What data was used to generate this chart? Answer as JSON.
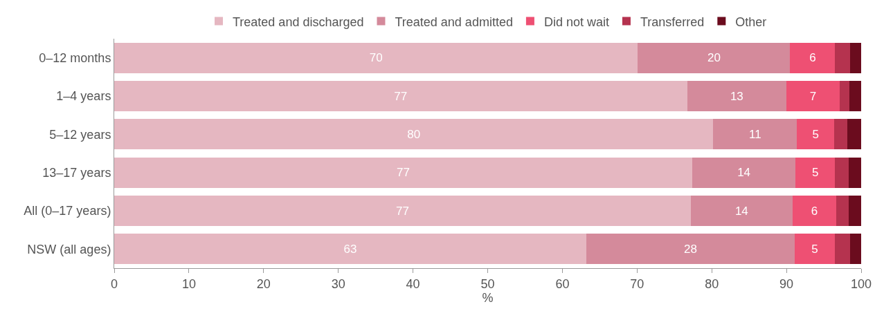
{
  "chart_data": {
    "type": "bar",
    "orientation": "horizontal",
    "stacked": true,
    "xlabel": "%",
    "categories": [
      "0–12 months",
      "1–4 years",
      "5–12 years",
      "13–17 years",
      "All (0–17 years)",
      "NSW (all ages)"
    ],
    "series": [
      {
        "name": "Treated and discharged",
        "color": "#e5b7c1",
        "values": [
          70.1,
          76.7,
          80.2,
          77.4,
          77.2,
          63.2
        ],
        "value_labels": [
          "70",
          "77",
          "80",
          "77",
          "77",
          "63"
        ]
      },
      {
        "name": "Treated and admitted",
        "color": "#d48a9b",
        "values": [
          20.4,
          13.3,
          11.2,
          13.8,
          13.6,
          27.9
        ],
        "value_labels": [
          "20",
          "13",
          "11",
          "14",
          "14",
          "28"
        ]
      },
      {
        "name": "Did not wait",
        "color": "#ee5073",
        "values": [
          6.0,
          7.1,
          5.0,
          5.3,
          5.9,
          5.4
        ],
        "value_labels": [
          "6",
          "7",
          "5",
          "5",
          "6",
          "5"
        ]
      },
      {
        "name": "Transferred",
        "color": "#b5334f",
        "values": [
          2.0,
          1.3,
          1.7,
          1.8,
          1.6,
          2.0
        ]
      },
      {
        "name": "Other",
        "color": "#6b0c1e",
        "values": [
          1.5,
          1.6,
          1.9,
          1.7,
          1.7,
          1.5
        ]
      }
    ],
    "xlim": [
      0,
      100
    ],
    "xticks": [
      0,
      10,
      20,
      30,
      40,
      50,
      60,
      70,
      80,
      90,
      100
    ],
    "grid": false,
    "legend": "top"
  }
}
